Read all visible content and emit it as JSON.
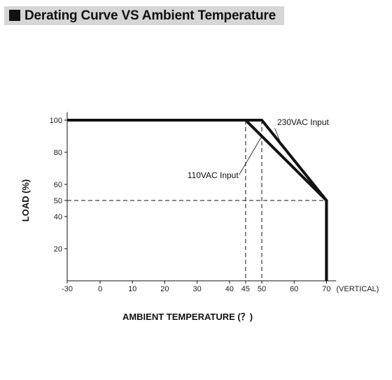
{
  "header": {
    "title": "Derating Curve VS Ambient Temperature"
  },
  "chart_data": {
    "type": "line",
    "xlabel": "AMBIENT TEMPERATURE (？)",
    "ylabel": "LOAD (%)",
    "x_ticks": [
      -30,
      0,
      10,
      20,
      30,
      40,
      45,
      50,
      60,
      70
    ],
    "x_tick_labels": [
      "-30",
      "0",
      "10",
      "20",
      "30",
      "40",
      "45",
      "50",
      "60",
      "70"
    ],
    "x_axis_suffix": "(VERTICAL)",
    "y_ticks": [
      20,
      40,
      50,
      60,
      80,
      100
    ],
    "y_tick_labels": [
      "20",
      "40",
      "50",
      "60",
      "80",
      "100"
    ],
    "xlim": [
      -30,
      73
    ],
    "ylim": [
      0,
      105
    ],
    "grid": false,
    "series": [
      {
        "name": "230VAC Input",
        "x": [
          -30,
          50,
          70,
          70
        ],
        "y": [
          100,
          100,
          50,
          0
        ]
      },
      {
        "name": "110VAC Input",
        "x": [
          -30,
          45,
          70,
          70
        ],
        "y": [
          100,
          100,
          50,
          0
        ]
      }
    ],
    "reference_lines": [
      {
        "orientation": "vertical",
        "x": 45,
        "y_range": [
          0,
          100
        ]
      },
      {
        "orientation": "vertical",
        "x": 50,
        "y_range": [
          0,
          100
        ]
      },
      {
        "orientation": "horizontal",
        "y": 50,
        "x_range": [
          -30,
          70
        ]
      }
    ]
  }
}
